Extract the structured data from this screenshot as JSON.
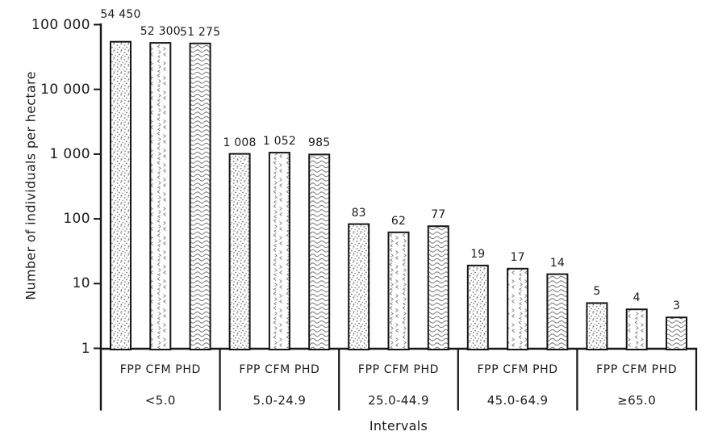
{
  "chart_data": {
    "type": "bar",
    "y_scale": "log",
    "title": "",
    "xlabel": "Intervals",
    "ylabel": "Number of individuals per hectare",
    "ylim": [
      1,
      100000
    ],
    "grid": "off",
    "legend": "none",
    "yticks": [
      {
        "value": 1,
        "label": "1"
      },
      {
        "value": 10,
        "label": "10"
      },
      {
        "value": 100,
        "label": "100"
      },
      {
        "value": 1000,
        "label": "1 000"
      },
      {
        "value": 10000,
        "label": "10 000"
      },
      {
        "value": 100000,
        "label": "100 000"
      }
    ],
    "categories": [
      "<5.0",
      "5.0-24.9",
      "25.0-44.9",
      "45.0-64.9",
      "≥65.0"
    ],
    "series": [
      {
        "name": "FPP",
        "pattern": "dots",
        "values": [
          54450,
          1008,
          83,
          19,
          5
        ],
        "value_labels": [
          "54 450",
          "1 008",
          "83",
          "19",
          "5"
        ]
      },
      {
        "name": "CFM",
        "pattern": "chevrons",
        "values": [
          52300,
          1052,
          62,
          17,
          4
        ],
        "value_labels": [
          "52 300",
          "1 052",
          "62",
          "17",
          "4"
        ]
      },
      {
        "name": "PHD",
        "pattern": "waves",
        "values": [
          51275,
          985,
          77,
          14,
          3
        ],
        "value_labels": [
          "51 275",
          "985",
          "77",
          "14",
          "3"
        ]
      }
    ],
    "colors": {
      "bar_border": "#161616",
      "bar_fill": "#ffffff",
      "pattern_marks": "#7e7e7e",
      "axis": "#161616",
      "text": "#1c1c1c"
    }
  }
}
